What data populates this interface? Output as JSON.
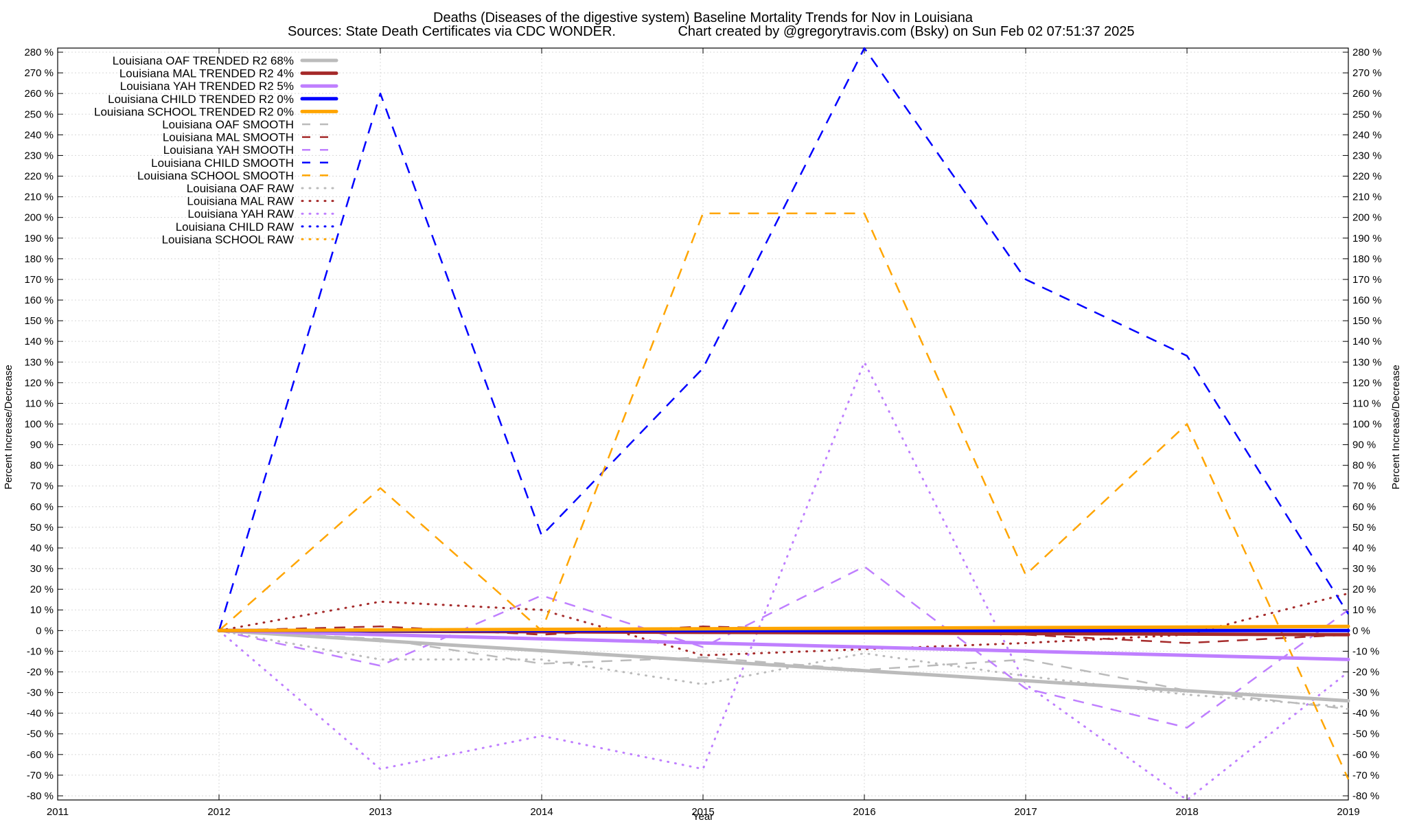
{
  "chart_data": {
    "type": "line",
    "title": "Deaths (Diseases of the digestive system)  Baseline Mortality Trends for Nov in Louisiana",
    "subtitle_left": "Sources: State Death Certificates via CDC WONDER.",
    "subtitle_right": "Chart created by @gregorytravis.com (Bsky) on Sun Feb 02 07:51:37 2025",
    "xlabel": "Year",
    "ylabel_left": "Percent Increase/Decrease",
    "ylabel_right": "Percent Increase/Decrease",
    "xlim": [
      2011,
      2019
    ],
    "ylim": [
      -82,
      282
    ],
    "x_ticks": [
      2011,
      2012,
      2013,
      2014,
      2015,
      2016,
      2017,
      2018,
      2019
    ],
    "y_ticks": [
      280,
      270,
      260,
      250,
      240,
      230,
      220,
      210,
      200,
      190,
      180,
      170,
      160,
      150,
      140,
      130,
      120,
      110,
      100,
      90,
      80,
      70,
      60,
      50,
      40,
      30,
      20,
      10,
      0,
      -10,
      -20,
      -30,
      -40,
      -50,
      -60,
      -70,
      -80
    ],
    "y_tick_suffix": " %",
    "grid": true,
    "legend_position": "top-left",
    "colors": {
      "oaf": "#bbbbbb",
      "mal": "#a52a2a",
      "yah": "#bf7fff",
      "child": "#0000ff",
      "school": "#ffa500"
    },
    "series": [
      {
        "name": "Louisiana OAF TRENDED R2",
        "r2": "68%",
        "style": "solid",
        "color_key": "oaf",
        "x": [
          2012,
          2019
        ],
        "values": [
          0,
          -34
        ]
      },
      {
        "name": "Louisiana MAL TRENDED R2",
        "r2": "4%",
        "style": "solid",
        "color_key": "mal",
        "x": [
          2012,
          2019
        ],
        "values": [
          0,
          -2
        ]
      },
      {
        "name": "Louisiana YAH TRENDED R2",
        "r2": "5%",
        "style": "solid",
        "color_key": "yah",
        "x": [
          2012,
          2019
        ],
        "values": [
          0,
          -14
        ]
      },
      {
        "name": "Louisiana CHILD TRENDED R2",
        "r2": "0%",
        "style": "solid",
        "color_key": "child",
        "x": [
          2012,
          2019
        ],
        "values": [
          0,
          0
        ]
      },
      {
        "name": "Louisiana SCHOOL TRENDED R2",
        "r2": "0%",
        "style": "solid",
        "color_key": "school",
        "x": [
          2012,
          2019
        ],
        "values": [
          0,
          2
        ]
      },
      {
        "name": "Louisiana OAF SMOOTH",
        "style": "dash",
        "color_key": "oaf",
        "x": [
          2012,
          2013,
          2014,
          2015,
          2016,
          2017,
          2018,
          2019
        ],
        "values": [
          0,
          -4,
          -16,
          -13,
          -19,
          -14,
          -29,
          -38
        ]
      },
      {
        "name": "Louisiana MAL SMOOTH",
        "style": "dash",
        "color_key": "mal",
        "x": [
          2012,
          2013,
          2014,
          2015,
          2016,
          2017,
          2018,
          2019
        ],
        "values": [
          0,
          2,
          -2,
          2,
          0,
          -2,
          -6,
          -2
        ]
      },
      {
        "name": "Louisiana YAH SMOOTH",
        "style": "dash",
        "color_key": "yah",
        "x": [
          2012,
          2013,
          2014,
          2015,
          2016,
          2017,
          2018,
          2019
        ],
        "values": [
          0,
          -17,
          17,
          -8,
          31,
          -28,
          -47,
          10
        ]
      },
      {
        "name": "Louisiana CHILD SMOOTH",
        "style": "dash",
        "color_key": "child",
        "x": [
          2012,
          2013,
          2014,
          2015,
          2016,
          2017,
          2018,
          2019
        ],
        "values": [
          0,
          260,
          46,
          127,
          282,
          170,
          133,
          8
        ]
      },
      {
        "name": "Louisiana SCHOOL SMOOTH",
        "style": "dash",
        "color_key": "school",
        "x": [
          2012,
          2013,
          2014,
          2015,
          2016,
          2017,
          2018,
          2019
        ],
        "values": [
          0,
          69,
          0,
          202,
          202,
          27,
          100,
          -72
        ]
      },
      {
        "name": "Louisiana OAF RAW",
        "style": "dot",
        "color_key": "oaf",
        "x": [
          2012,
          2013,
          2014,
          2015,
          2016,
          2017,
          2018,
          2019
        ],
        "values": [
          0,
          -14,
          -14,
          -26,
          -11,
          -22,
          -31,
          -37
        ]
      },
      {
        "name": "Louisiana MAL RAW",
        "style": "dot",
        "color_key": "mal",
        "x": [
          2012,
          2013,
          2014,
          2015,
          2016,
          2017,
          2018,
          2019
        ],
        "values": [
          0,
          14,
          10,
          -12,
          -9,
          -6,
          -2,
          18
        ]
      },
      {
        "name": "Louisiana YAH RAW",
        "style": "dot",
        "color_key": "yah",
        "x": [
          2012,
          2013,
          2014,
          2015,
          2016,
          2017,
          2018,
          2019
        ],
        "values": [
          0,
          -67,
          -51,
          -67,
          130,
          -26,
          -82,
          -20
        ]
      },
      {
        "name": "Louisiana CHILD RAW",
        "style": "dot",
        "color_key": "child",
        "x": [
          2012,
          2013,
          2014,
          2015,
          2016,
          2017,
          2018,
          2019
        ],
        "values": [
          0,
          0,
          0,
          0,
          0,
          0,
          0,
          0
        ]
      },
      {
        "name": "Louisiana SCHOOL RAW",
        "style": "dot",
        "color_key": "school",
        "x": [
          2012,
          2013,
          2014,
          2015,
          2016,
          2017,
          2018,
          2019
        ],
        "values": [
          0,
          0,
          0,
          0,
          0,
          0,
          0,
          0
        ]
      }
    ]
  }
}
